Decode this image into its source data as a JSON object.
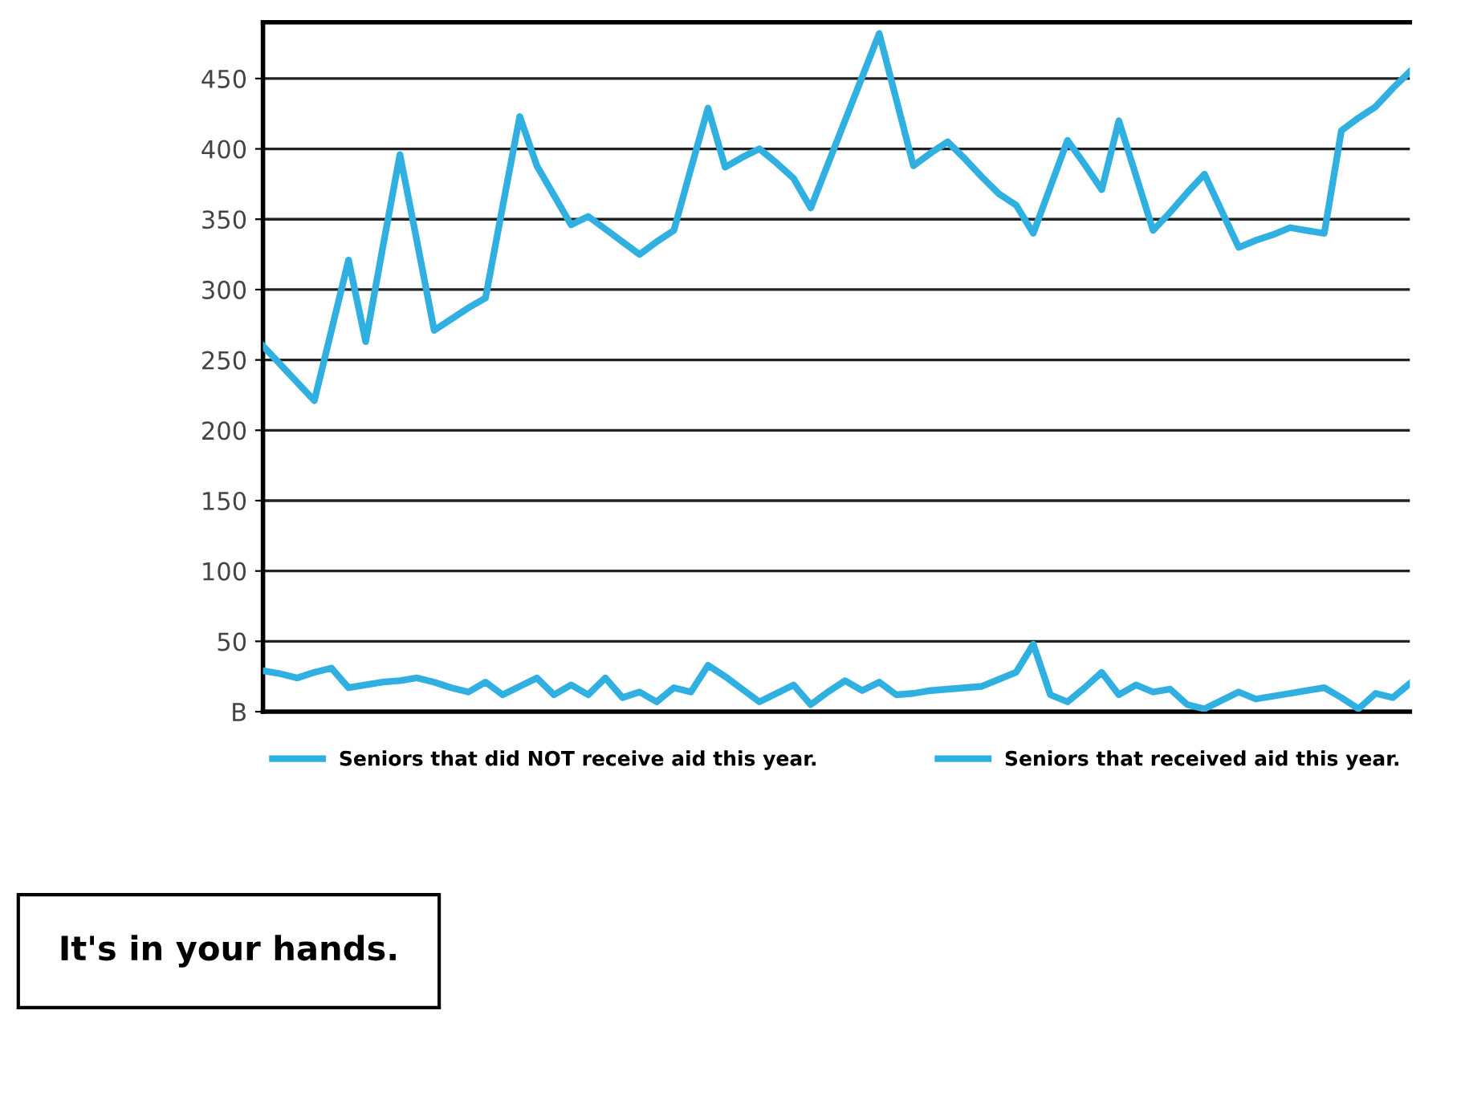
{
  "chart_data": {
    "type": "line",
    "categories": [
      null,
      null,
      null,
      null,
      null,
      null,
      null,
      null,
      null,
      null,
      null,
      null,
      null,
      null,
      null,
      null,
      null,
      null,
      null,
      null,
      null,
      null,
      null,
      null,
      null,
      null,
      null,
      null,
      null,
      null,
      null,
      null,
      null,
      null,
      null,
      null,
      null,
      null,
      null,
      null,
      null,
      null,
      null,
      null,
      null,
      null,
      null,
      null,
      null,
      null,
      null,
      null,
      null,
      null,
      null,
      null,
      null,
      null,
      null,
      null,
      null,
      null,
      null,
      null,
      null,
      null,
      null,
      null
    ],
    "series": [
      {
        "name": "Seniors that did NOT receive aid this year.",
        "color": "#2fb0e0",
        "values": [
          260,
          247,
          234,
          221,
          271,
          321,
          263,
          330,
          396,
          334,
          271,
          279,
          287,
          294,
          359,
          423,
          388,
          367,
          346,
          352,
          343,
          334,
          325,
          334,
          342,
          386,
          429,
          387,
          394,
          400,
          390,
          379,
          358,
          389,
          420,
          451,
          482,
          435,
          388,
          397,
          405,
          393,
          380,
          368,
          360,
          340,
          373,
          406,
          389,
          371,
          420,
          381,
          342,
          355,
          369,
          382,
          356,
          330,
          335,
          339,
          344,
          342,
          340,
          413,
          422,
          430,
          443,
          455
        ]
      },
      {
        "name": "Seniors that received aid this year.",
        "color": "#2fb0e0",
        "values": [
          29,
          27,
          24,
          28,
          31,
          17,
          19,
          21,
          22,
          24,
          21,
          17,
          14,
          21,
          12,
          18,
          24,
          12,
          19,
          12,
          24,
          10,
          14,
          7,
          17,
          14,
          33,
          25,
          16,
          7,
          13,
          19,
          5,
          14,
          22,
          15,
          21,
          12,
          13,
          15,
          16,
          17,
          18,
          23,
          28,
          48,
          12,
          7,
          17,
          28,
          12,
          19,
          14,
          16,
          5,
          2,
          8,
          14,
          9,
          11,
          13,
          15,
          17,
          10,
          2,
          13,
          10,
          20
        ]
      }
    ],
    "ylim": [
      0,
      490
    ],
    "yticks": [
      {
        "value": 0,
        "label": "B"
      },
      50,
      100,
      150,
      200,
      250,
      300,
      350,
      400,
      450
    ],
    "tick_labels": "y",
    "grid": "y",
    "legend": "bottom",
    "marker": "none",
    "line_style": "solid",
    "annotations": [
      "It's in your hands."
    ]
  }
}
